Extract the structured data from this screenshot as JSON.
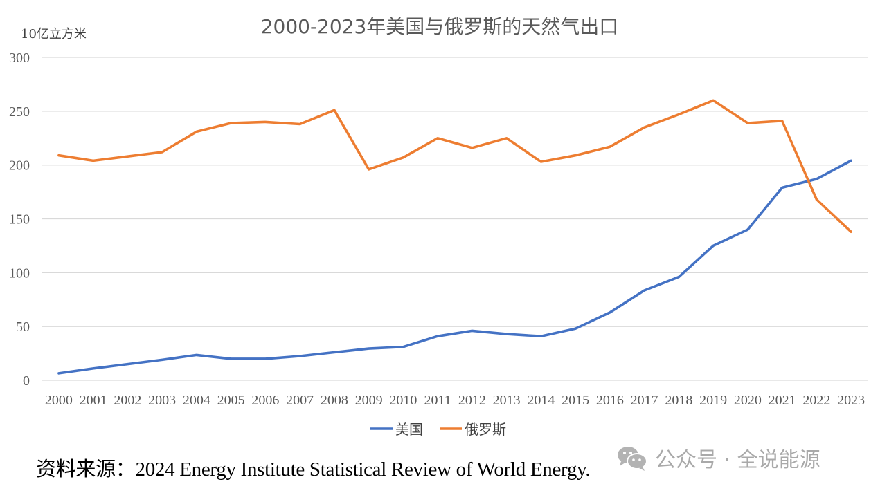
{
  "chart_data": {
    "type": "line",
    "title": "2000-2023年美国与俄罗斯的天然气出口",
    "ylabel": "10亿立方米",
    "xlabel": "",
    "ylim": [
      0,
      300
    ],
    "yticks": [
      0,
      50,
      100,
      150,
      200,
      250,
      300
    ],
    "grid": true,
    "legend_position": "bottom",
    "categories": [
      "2000",
      "2001",
      "2002",
      "2003",
      "2004",
      "2005",
      "2006",
      "2007",
      "2008",
      "2009",
      "2010",
      "2011",
      "2012",
      "2013",
      "2014",
      "2015",
      "2016",
      "2017",
      "2018",
      "2019",
      "2020",
      "2021",
      "2022",
      "2023"
    ],
    "series": [
      {
        "name": "美国",
        "color": "#4472C4",
        "values": [
          6.5,
          11,
          15,
          19,
          23.5,
          20,
          20,
          22.5,
          26,
          29.5,
          31,
          41,
          46,
          43,
          41,
          48,
          63,
          83.5,
          96,
          125,
          140,
          179,
          187,
          204
        ]
      },
      {
        "name": "俄罗斯",
        "color": "#ED7D31",
        "values": [
          209,
          204,
          208,
          212,
          231,
          239,
          240,
          238,
          251,
          196,
          207,
          225,
          216,
          225,
          203,
          209,
          217,
          235,
          247,
          260,
          239,
          241,
          168,
          138
        ]
      }
    ]
  },
  "footer": {
    "source": "资料来源：2024 Energy Institute Statistical Review of World Energy.",
    "watermark": "公众号 · 全说能源",
    "watermark_icon": "wechat-icon"
  }
}
